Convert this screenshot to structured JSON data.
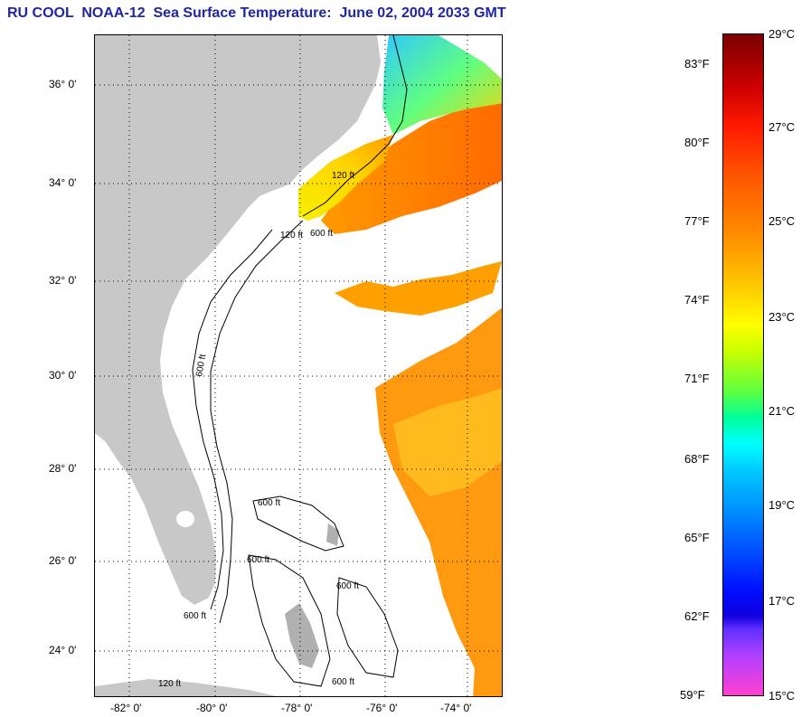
{
  "title": "RU COOL  NOAA-12  Sea Surface Temperature:  June 02, 2004 2033 GMT",
  "map": {
    "lat_labels": [
      "36° 0'",
      "34° 0'",
      "32° 0'",
      "30° 0'",
      "28° 0'",
      "26° 0'",
      "24° 0'"
    ],
    "lon_labels": [
      "-82° 0'",
      "-80° 0'",
      "-78° 0'",
      "-76° 0'",
      "-74° 0'"
    ],
    "contour_labels": [
      "120 ft",
      "600 ft",
      "120 ft",
      "600 ft",
      "600 ft",
      "600 ft",
      "600 ft",
      "600 ft",
      "120 ft",
      "600 ft"
    ],
    "colors": {
      "land": "#c8c8c8",
      "cloud": "#ffffff",
      "grid": "#000000"
    }
  },
  "colorbar": {
    "fahrenheit": [
      "83°F",
      "80°F",
      "77°F",
      "74°F",
      "71°F",
      "68°F",
      "65°F",
      "62°F",
      "59°F"
    ],
    "celsius": [
      "29°C",
      "27°C",
      "25°C",
      "23°C",
      "21°C",
      "19°C",
      "17°C",
      "15°C"
    ]
  }
}
